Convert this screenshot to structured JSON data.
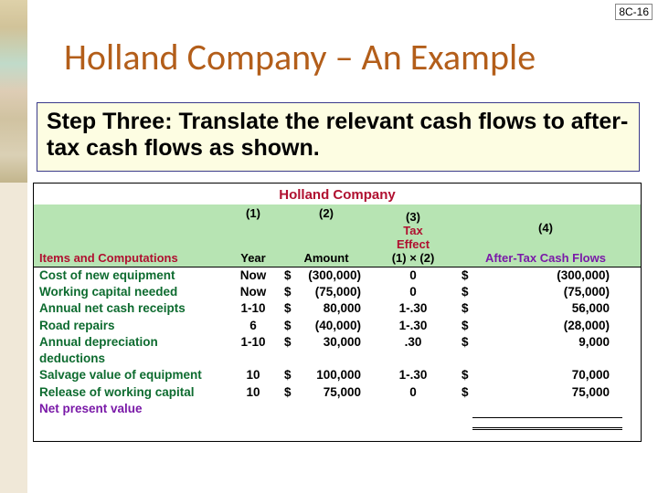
{
  "page_number": "8C-16",
  "title": "Holland Company – An Example",
  "step_text": "Step Three:  Translate the relevant cash flows to after-tax cash flows as shown.",
  "company": "Holland Company",
  "colors": {
    "title": "#b35e1a",
    "stepbox_bg": "#fdfde2",
    "stepbox_border": "#3a3a8a",
    "table_header_bg": "#b7e4b3",
    "item_green": "#0d6b2f",
    "red": "#b01030",
    "purple": "#7a1aa8"
  },
  "columns": {
    "nums": [
      "(1)",
      "(2)",
      "(3)",
      "(4)"
    ],
    "items_label": "Items and Computations",
    "year": "Year",
    "amount": "Amount",
    "tax_effect_top": "Tax",
    "tax_effect_mid": "Effect",
    "tax_effect_sub": "(1) × (2)",
    "aftertax": "After-Tax Cash Flows"
  },
  "rows": [
    {
      "item": "Cost of new equipment",
      "year": "Now",
      "cur": "$",
      "amount": "(300,000)",
      "effect": "0",
      "cur2": "$",
      "aftertax": "(300,000)"
    },
    {
      "item": "Working capital needed",
      "year": "Now",
      "cur": "$",
      "amount": "(75,000)",
      "effect": "0",
      "cur2": "$",
      "aftertax": "(75,000)"
    },
    {
      "item": "Annual net cash receipts",
      "year": "1-10",
      "cur": "$",
      "amount": "80,000",
      "effect": "1-.30",
      "cur2": "$",
      "aftertax": "56,000"
    },
    {
      "item": "Road repairs",
      "year": "6",
      "cur": "$",
      "amount": "(40,000)",
      "effect": "1-.30",
      "cur2": "$",
      "aftertax": "(28,000)"
    },
    {
      "item": "Annual depreciation deductions",
      "year": "1-10",
      "cur": "$",
      "amount": "30,000",
      "effect": ".30",
      "cur2": "$",
      "aftertax": "9,000"
    },
    {
      "item": "Salvage value of equipment",
      "year": "10",
      "cur": "$",
      "amount": "100,000",
      "effect": "1-.30",
      "cur2": "$",
      "aftertax": "70,000"
    },
    {
      "item": "Release of working capital",
      "year": "10",
      "cur": "$",
      "amount": "75,000",
      "effect": "0",
      "cur2": "$",
      "aftertax": "75,000"
    },
    {
      "item": "Net present value",
      "npv": true,
      "year": "",
      "cur": "",
      "amount": "",
      "effect": "",
      "cur2": "",
      "aftertax": ""
    }
  ]
}
